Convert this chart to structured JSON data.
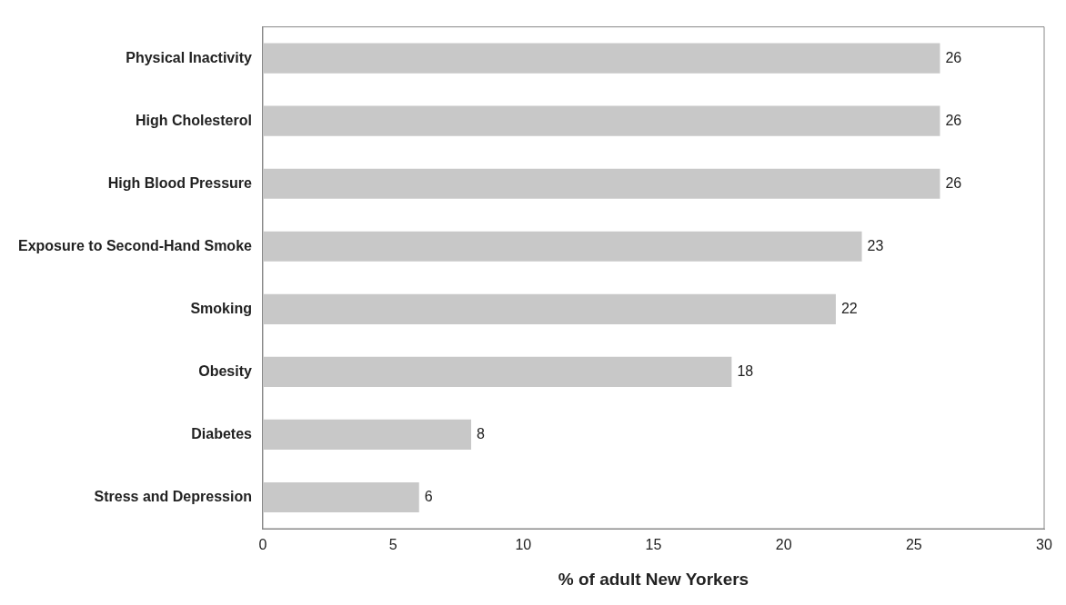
{
  "chart_data": {
    "type": "bar",
    "orientation": "horizontal",
    "xlabel": "% of adult New Yorkers",
    "categories": [
      "Physical Inactivity",
      "High Cholesterol",
      "High Blood Pressure",
      "Exposure to Second-Hand Smoke",
      "Smoking",
      "Obesity",
      "Diabetes",
      "Stress and Depression"
    ],
    "values": [
      26,
      26,
      26,
      23,
      22,
      18,
      8,
      6
    ],
    "color": "#c8c8c8",
    "xlim": [
      0,
      30
    ],
    "xticks": [
      0,
      5,
      10,
      15,
      20,
      25,
      30
    ],
    "grid": false,
    "legend": false,
    "data_labels": true
  }
}
